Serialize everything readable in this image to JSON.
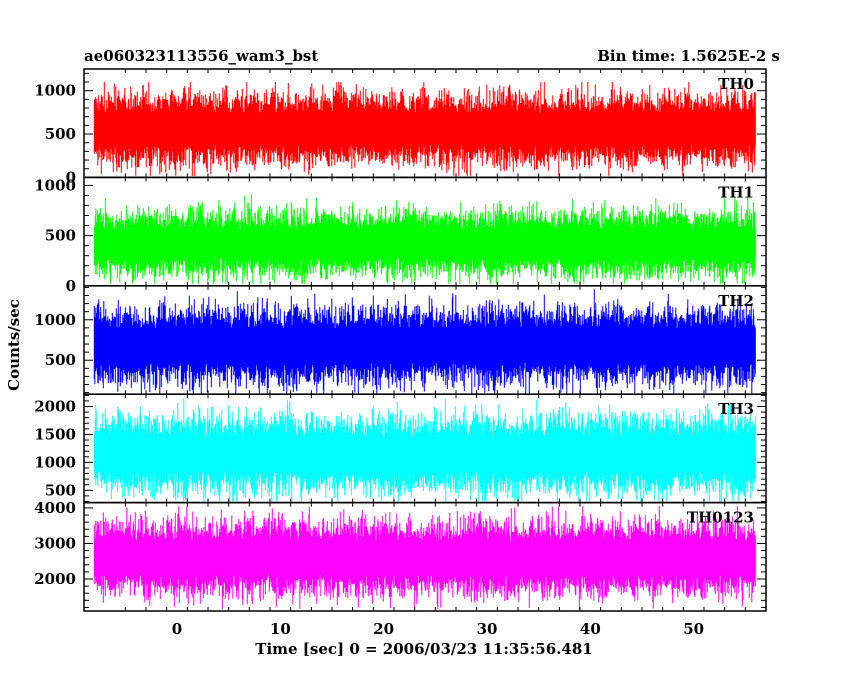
{
  "chart_data": {
    "type": "line",
    "title_left": "ae060323113556_wam3_bst",
    "title_right": "Bin time: 1.5625E-2 s",
    "xlabel": "Time [sec] 0 = 2006/03/23 11:35:56.481",
    "ylabel": "Counts/sec",
    "xlim": [
      -9,
      57
    ],
    "x_range": [
      -8,
      56
    ],
    "xticks": [
      0,
      10,
      20,
      30,
      40,
      50
    ],
    "grid": false,
    "panels": [
      {
        "name": "TH0",
        "color": "#ff0000",
        "ylim": [
          0,
          1250
        ],
        "yticks": [
          0,
          500,
          1000
        ],
        "baseline": 560,
        "spread": 330,
        "max": 1100,
        "min": 20
      },
      {
        "name": "TH1",
        "color": "#00ff00",
        "ylim": [
          0,
          1080
        ],
        "yticks": [
          0,
          500,
          1000
        ],
        "baseline": 420,
        "spread": 260,
        "max": 1050,
        "min": 20
      },
      {
        "name": "TH2",
        "color": "#0000ff",
        "ylim": [
          80,
          1420
        ],
        "yticks": [
          500,
          1000
        ],
        "baseline": 680,
        "spread": 380,
        "max": 1400,
        "min": 90
      },
      {
        "name": "TH3",
        "color": "#00ffff",
        "ylim": [
          280,
          2220
        ],
        "yticks": [
          500,
          1000,
          1500,
          2000
        ],
        "baseline": 1150,
        "spread": 550,
        "max": 2150,
        "min": 300
      },
      {
        "name": "TH0123",
        "color": "#ff00ff",
        "ylim": [
          1100,
          4150
        ],
        "yticks": [
          2000,
          3000,
          4000
        ],
        "baseline": 2600,
        "spread": 850,
        "max": 4050,
        "min": 1150
      }
    ]
  }
}
